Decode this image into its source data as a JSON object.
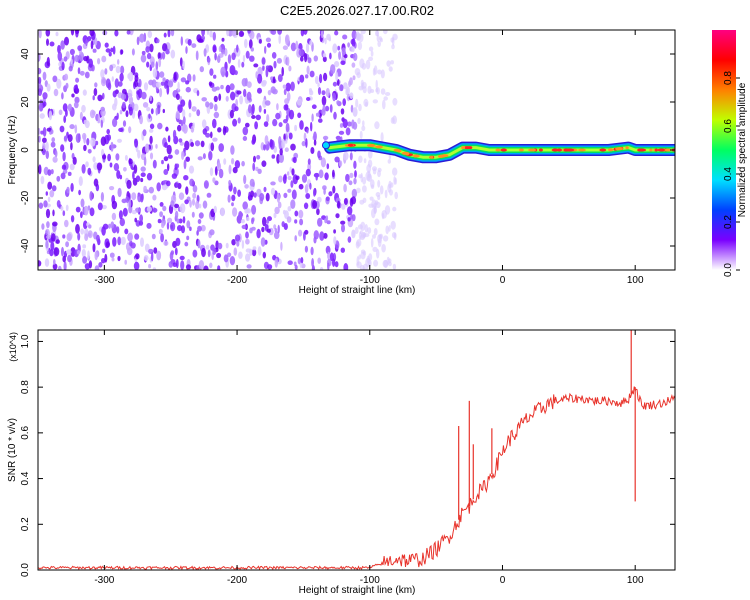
{
  "title": "C2E5.2026.027.17.00.R02",
  "chart_data": [
    {
      "type": "heatmap",
      "xlabel": "Height of straight line (km)",
      "ylabel": "Frequency (Hz)",
      "xlim": [
        -350,
        130
      ],
      "ylim": [
        -50,
        50
      ],
      "x_ticks": [
        "-300",
        "-200",
        "-100",
        "0",
        "100"
      ],
      "y_ticks": [
        "-40",
        "-20",
        "0",
        "20",
        "40"
      ],
      "colorbar": {
        "label": "Normalized spectral amplitude",
        "range": [
          0.0,
          1.0
        ],
        "ticks": [
          "0.0",
          "0.2",
          "0.4",
          "0.6",
          "0.8"
        ],
        "stops": [
          "#ffffff",
          "#7a00ff",
          "#0040ff",
          "#00e0ff",
          "#00ff60",
          "#c0ff00",
          "#ff8000",
          "#ff0000",
          "#ff0080"
        ]
      },
      "noise_region_x": [
        -350,
        -80
      ],
      "signal_trace": {
        "x": [
          -130,
          -115,
          -100,
          -90,
          -80,
          -70,
          -60,
          -50,
          -40,
          -30,
          -20,
          -10,
          0,
          20,
          40,
          60,
          80,
          95,
          100,
          110,
          130
        ],
        "y": [
          1,
          2,
          2,
          1,
          0,
          -2,
          -3,
          -3,
          -2,
          1,
          1,
          0,
          0,
          0,
          0,
          0,
          0,
          1,
          0,
          0,
          0
        ]
      }
    },
    {
      "type": "line",
      "xlabel": "Height of straight line (km)",
      "ylabel": "SNR (10 * v/v)",
      "y_multiplier": "(x10^4)",
      "xlim": [
        -350,
        130
      ],
      "ylim": [
        0,
        1.05
      ],
      "x_ticks": [
        "-300",
        "-200",
        "-100",
        "0",
        "100"
      ],
      "y_ticks": [
        "0.0",
        "0.2",
        "0.4",
        "0.6",
        "0.8",
        "1.0"
      ],
      "series": [
        {
          "color": "#e8342c",
          "x": [
            -350,
            -300,
            -250,
            -200,
            -150,
            -100,
            -90,
            -80,
            -70,
            -60,
            -50,
            -40,
            -35,
            -30,
            -25,
            -20,
            -15,
            -10,
            -5,
            0,
            5,
            10,
            15,
            20,
            25,
            30,
            35,
            40,
            50,
            60,
            70,
            80,
            90,
            95,
            100,
            105,
            110,
            120,
            130
          ],
          "y": [
            0.01,
            0.01,
            0.01,
            0.01,
            0.01,
            0.01,
            0.03,
            0.05,
            0.04,
            0.05,
            0.09,
            0.15,
            0.2,
            0.25,
            0.28,
            0.33,
            0.35,
            0.4,
            0.45,
            0.52,
            0.57,
            0.6,
            0.64,
            0.67,
            0.69,
            0.71,
            0.73,
            0.74,
            0.75,
            0.75,
            0.74,
            0.74,
            0.73,
            0.75,
            0.8,
            0.72,
            0.72,
            0.73,
            0.75
          ]
        }
      ],
      "spikes": [
        {
          "x": -33,
          "y": 0.63
        },
        {
          "x": -25,
          "y": 0.74
        },
        {
          "x": -22,
          "y": 0.55
        },
        {
          "x": -8,
          "y": 0.62
        },
        {
          "x": 97,
          "y": 1.05
        },
        {
          "x": 100,
          "y": 0.3
        }
      ]
    }
  ]
}
